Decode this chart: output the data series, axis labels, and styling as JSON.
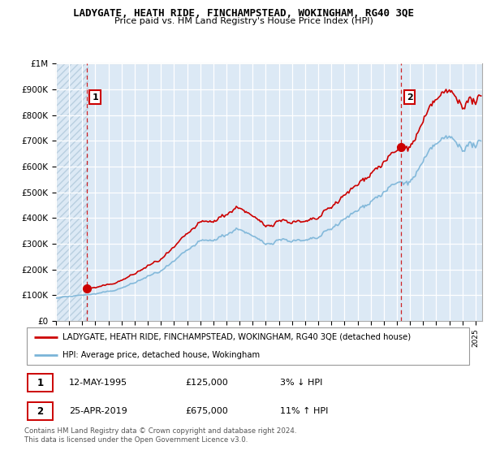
{
  "title": "LADYGATE, HEATH RIDE, FINCHAMPSTEAD, WOKINGHAM, RG40 3QE",
  "subtitle": "Price paid vs. HM Land Registry's House Price Index (HPI)",
  "legend_line1": "LADYGATE, HEATH RIDE, FINCHAMPSTEAD, WOKINGHAM, RG40 3QE (detached house)",
  "legend_line2": "HPI: Average price, detached house, Wokingham",
  "annotation1_label": "1",
  "annotation1_date": "12-MAY-1995",
  "annotation1_price": "£125,000",
  "annotation1_hpi": "3% ↓ HPI",
  "annotation2_label": "2",
  "annotation2_date": "25-APR-2019",
  "annotation2_price": "£675,000",
  "annotation2_hpi": "11% ↑ HPI",
  "footer": "Contains HM Land Registry data © Crown copyright and database right 2024.\nThis data is licensed under the Open Government Licence v3.0.",
  "plot_bg": "#dce9f5",
  "hatch_color": "#b8cfe0",
  "transaction_color": "#cc0000",
  "hpi_color": "#7ab4d8",
  "ylim": [
    0,
    1000000
  ],
  "xlim_start": 1993.0,
  "xlim_end": 2025.5,
  "transaction1_x": 1995.36,
  "transaction1_y": 125000,
  "transaction2_x": 2019.32,
  "transaction2_y": 675000,
  "hpi_annual_years": [
    1993,
    1994,
    1995,
    1996,
    1997,
    1998,
    1999,
    2000,
    2001,
    2002,
    2003,
    2004,
    2005,
    2006,
    2007,
    2008,
    2009,
    2010,
    2011,
    2012,
    2013,
    2014,
    2015,
    2016,
    2017,
    2018,
    2019,
    2020,
    2021,
    2022,
    2023,
    2024,
    2025
  ],
  "hpi_annual_values": [
    88000,
    95000,
    100000,
    104000,
    113000,
    127000,
    148000,
    172000,
    193000,
    228000,
    272000,
    308000,
    312000,
    338000,
    360000,
    325000,
    298000,
    318000,
    312000,
    308000,
    322000,
    360000,
    392000,
    428000,
    468000,
    498000,
    535000,
    538000,
    612000,
    690000,
    710000,
    678000,
    685000
  ]
}
